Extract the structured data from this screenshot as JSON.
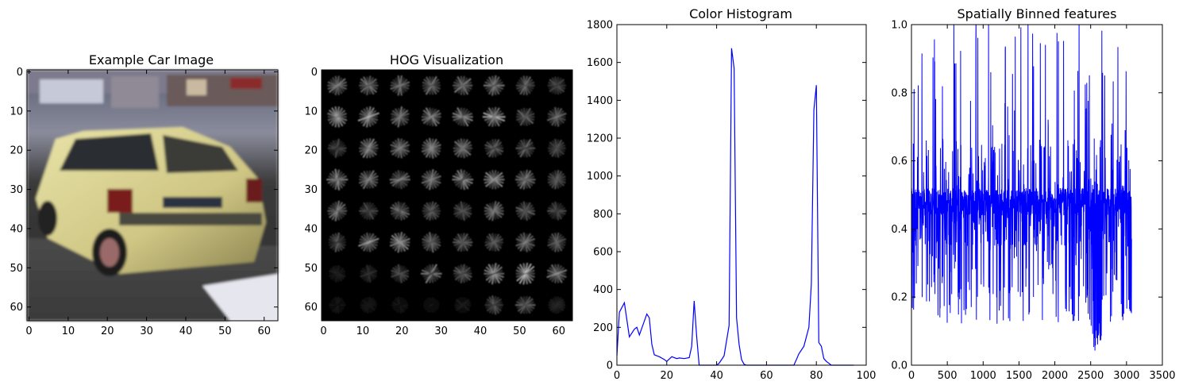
{
  "chart_data": [
    {
      "type": "image",
      "title": "Example Car Image",
      "x_ticks": [
        0,
        10,
        20,
        30,
        40,
        50,
        60
      ],
      "y_ticks": [
        0,
        10,
        20,
        30,
        40,
        50,
        60
      ],
      "xlim": [
        -0.5,
        63.5
      ],
      "ylim": [
        63.5,
        -0.5
      ]
    },
    {
      "type": "image",
      "title": "HOG Visualization",
      "x_ticks": [
        0,
        10,
        20,
        30,
        40,
        50,
        60
      ],
      "y_ticks": [
        0,
        10,
        20,
        30,
        40,
        50,
        60
      ],
      "xlim": [
        -0.5,
        63.5
      ],
      "ylim": [
        63.5,
        -0.5
      ],
      "cell_strengths": [
        [
          0.55,
          0.55,
          0.45,
          0.5,
          0.55,
          0.55,
          0.45,
          0.35
        ],
        [
          0.55,
          0.65,
          0.5,
          0.55,
          0.6,
          0.75,
          0.5,
          0.45
        ],
        [
          0.35,
          0.6,
          0.45,
          0.5,
          0.5,
          0.4,
          0.45,
          0.35
        ],
        [
          0.6,
          0.6,
          0.5,
          0.6,
          0.55,
          0.6,
          0.5,
          0.4
        ],
        [
          0.5,
          0.35,
          0.45,
          0.45,
          0.45,
          0.45,
          0.45,
          0.35
        ],
        [
          0.4,
          0.65,
          0.6,
          0.5,
          0.45,
          0.45,
          0.45,
          0.4
        ],
        [
          0.15,
          0.2,
          0.35,
          0.55,
          0.5,
          0.6,
          0.7,
          0.55
        ],
        [
          0.1,
          0.1,
          0.1,
          0.1,
          0.15,
          0.35,
          0.45,
          0.15
        ]
      ]
    },
    {
      "type": "line",
      "title": "Color Histogram",
      "xlim": [
        0,
        100
      ],
      "ylim": [
        0,
        1800
      ],
      "x_ticks": [
        0,
        20,
        40,
        60,
        80,
        100
      ],
      "y_ticks": [
        0,
        200,
        400,
        600,
        800,
        1000,
        1200,
        1400,
        1600,
        1800
      ],
      "x": [
        0,
        1,
        3,
        5,
        7,
        8,
        9,
        12,
        13,
        14,
        15,
        17,
        19,
        20,
        22,
        24,
        25,
        27,
        29,
        30,
        31,
        32,
        33,
        40,
        41,
        42,
        43,
        45,
        46,
        47,
        48,
        49,
        50,
        51,
        52,
        54,
        60,
        65,
        71,
        72,
        73,
        75,
        77,
        78,
        79,
        80,
        81,
        82,
        83,
        84,
        86,
        88,
        95
      ],
      "values": [
        50,
        280,
        330,
        150,
        190,
        200,
        160,
        270,
        250,
        110,
        55,
        45,
        30,
        20,
        45,
        35,
        38,
        35,
        40,
        100,
        340,
        150,
        0,
        0,
        10,
        30,
        50,
        210,
        1675,
        1570,
        250,
        110,
        30,
        5,
        0,
        0,
        0,
        0,
        0,
        30,
        60,
        100,
        200,
        430,
        1350,
        1480,
        120,
        100,
        35,
        20,
        0,
        0,
        0
      ]
    },
    {
      "type": "line",
      "title": "Spatially Binned features",
      "xlim": [
        0,
        3500
      ],
      "ylim": [
        0.0,
        1.0
      ],
      "x_ticks": [
        0,
        500,
        1000,
        1500,
        2000,
        2500,
        3000,
        3500
      ],
      "y_ticks": [
        "0.0",
        "0.2",
        "0.4",
        "0.6",
        "0.8",
        "1.0"
      ],
      "n_points": 3072
    }
  ]
}
